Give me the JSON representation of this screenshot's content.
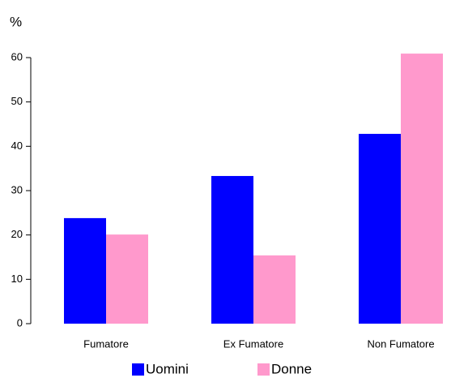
{
  "chart_data": {
    "type": "bar",
    "y_label": "%",
    "categories": [
      "Fumatore",
      "Ex Fumatore",
      "Non Fumatore"
    ],
    "series": [
      {
        "name": "Uomini",
        "color": "#0000ff",
        "values": [
          23.8,
          33.3,
          42.8
        ]
      },
      {
        "name": "Donne",
        "color": "#ff99cc",
        "values": [
          20.1,
          15.4,
          60.9
        ]
      }
    ],
    "ylim": [
      0,
      60
    ],
    "yticks": [
      0,
      10,
      20,
      30,
      40,
      50,
      60
    ],
    "grid": false
  }
}
